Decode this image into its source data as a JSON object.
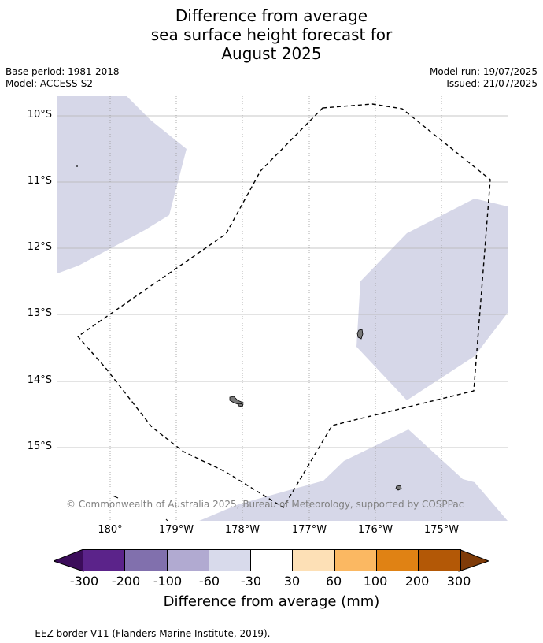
{
  "title": {
    "line1": "Difference from average",
    "line2": "sea surface height forecast for",
    "line3": "August 2025"
  },
  "meta_left": {
    "base_period": "Base period: 1981-2018",
    "model": "Model: ACCESS-S2"
  },
  "meta_right": {
    "model_run": "Model run: 19/07/2025",
    "issued": "Issued: 21/07/2025"
  },
  "map": {
    "latitude_labels": [
      "10°S",
      "11°S",
      "12°S",
      "13°S",
      "14°S",
      "15°S"
    ],
    "longitude_labels": [
      "180°",
      "179°W",
      "178°W",
      "177°W",
      "176°W",
      "175°W"
    ],
    "copyright": "© Commonwealth of Australia 2025, Bureau of Meteorology, supported by COSPPac",
    "anomaly_color": "#d6d7e8",
    "eez_line_color": "#000000"
  },
  "colorbar": {
    "title": "Difference from average (mm)",
    "ticks": [
      "-300",
      "-200",
      "-100",
      "-60",
      "-30",
      "30",
      "60",
      "100",
      "200",
      "300"
    ],
    "low_extend_color": "#3b0c5a",
    "high_extend_color": "#7f3b08",
    "colors": [
      "#5b238a",
      "#8170ad",
      "#b1aad1",
      "#d8daeb",
      "#ffffff",
      "#fde0b6",
      "#fbb862",
      "#e08214",
      "#b35806"
    ]
  },
  "footnote": "--  --  -- EEZ border V11 (Flanders Marine Institute, 2019)."
}
